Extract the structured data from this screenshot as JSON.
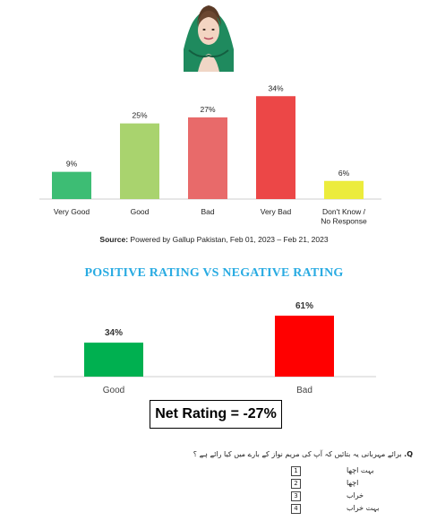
{
  "chart_data": [
    {
      "type": "bar",
      "categories": [
        "Very Good",
        "Good",
        "Bad",
        "Very Bad",
        "Don't Know / No Response"
      ],
      "values": [
        9,
        25,
        27,
        34,
        6
      ],
      "data_labels": [
        "9%",
        "25%",
        "27%",
        "34%",
        "6%"
      ],
      "colors": [
        "#3dbd74",
        "#a9d36e",
        "#e86a6a",
        "#ec4747",
        "#ecec3c"
      ],
      "ylim": [
        0,
        40
      ],
      "grid": false,
      "title": "",
      "xlabel": "",
      "ylabel": ""
    },
    {
      "type": "bar",
      "title": "POSITIVE RATING VS NEGATIVE RATING",
      "categories": [
        "Good",
        "Bad"
      ],
      "values": [
        34,
        61
      ],
      "data_labels": [
        "34%",
        "61%"
      ],
      "colors": [
        "#00b050",
        "#ff0000"
      ],
      "ylim": [
        0,
        70
      ],
      "grid": false,
      "xlabel": "",
      "ylabel": ""
    }
  ],
  "source": {
    "prefix": "Source:",
    "text": " Powered by Gallup Pakistan, Feb 01, 2023 – Feb 21, 2023"
  },
  "net_rating": "Net Rating = -27%",
  "question": {
    "prefix": "Q.",
    "text": "برائے مہربانی یہ بتائیں کہ آپ کی مریم نواز کے بارے میں کیا رائے ہے ؟",
    "options": [
      {
        "num": "1",
        "label": "بہت اچھا"
      },
      {
        "num": "2",
        "label": "اچھا"
      },
      {
        "num": "3",
        "label": "خراب"
      },
      {
        "num": "4",
        "label": "بہت خراب"
      }
    ]
  }
}
